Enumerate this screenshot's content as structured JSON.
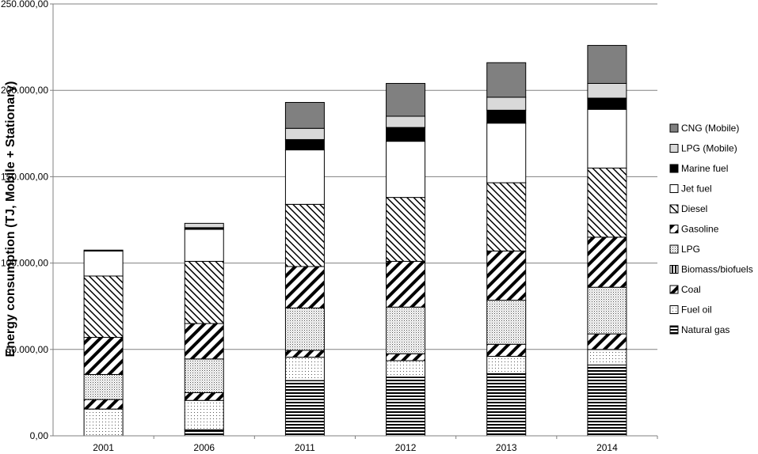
{
  "chart_data": {
    "type": "bar",
    "stacked": true,
    "ylabel": "Energy consumption (TJ, Mobile + Stationary)",
    "xlabel": "",
    "title": "",
    "ylim": [
      0,
      250000
    ],
    "yticks": [
      0,
      50000,
      100000,
      150000,
      200000,
      250000
    ],
    "ytick_labels": [
      "0,00",
      "50.000,00",
      "100.000,00",
      "150.000,00",
      "200.000,00",
      "250.000,00"
    ],
    "grid": true,
    "legend_position": "right",
    "categories": [
      "2001",
      "2006",
      "2011",
      "2012",
      "2013",
      "2014"
    ],
    "series": [
      {
        "name": "Natural gas",
        "pattern": "hlines",
        "values": [
          0,
          3500,
          32000,
          34000,
          36000,
          41000
        ]
      },
      {
        "name": "Fuel oil",
        "pattern": "dots-light",
        "values": [
          15500,
          17000,
          13500,
          9500,
          10000,
          9000
        ]
      },
      {
        "name": "Coal",
        "pattern": "diag-thick",
        "values": [
          5500,
          4500,
          4000,
          4000,
          7000,
          9000
        ]
      },
      {
        "name": "Biomass/biofuels",
        "pattern": "vlines",
        "values": [
          0,
          0,
          0,
          0,
          0,
          0
        ]
      },
      {
        "name": "LPG",
        "pattern": "dots-dense",
        "values": [
          14500,
          19500,
          24500,
          27000,
          25500,
          27000
        ]
      },
      {
        "name": "Gasoline",
        "pattern": "diag-thick",
        "values": [
          21500,
          20500,
          24000,
          26500,
          28500,
          29000
        ]
      },
      {
        "name": "Diesel",
        "pattern": "diag-thin",
        "values": [
          35500,
          36000,
          36000,
          37000,
          39500,
          40000
        ]
      },
      {
        "name": "Jet fuel",
        "pattern": "white",
        "values": [
          14500,
          18500,
          31500,
          32500,
          34500,
          34000
        ]
      },
      {
        "name": "Marine fuel",
        "pattern": "black",
        "values": [
          500,
          1000,
          6000,
          8000,
          7500,
          6500
        ]
      },
      {
        "name": "LPG (Mobile)",
        "pattern": "lightgray",
        "values": [
          0,
          2500,
          6500,
          6500,
          7500,
          8500
        ]
      },
      {
        "name": "CNG (Mobile)",
        "pattern": "darkgray",
        "values": [
          0,
          0,
          15000,
          19000,
          20000,
          22000
        ]
      }
    ],
    "legend_order": [
      "CNG (Mobile)",
      "LPG (Mobile)",
      "Marine fuel",
      "Jet fuel",
      "Diesel",
      "Gasoline",
      "LPG",
      "Biomass/biofuels",
      "Coal",
      "Fuel oil",
      "Natural gas"
    ]
  }
}
